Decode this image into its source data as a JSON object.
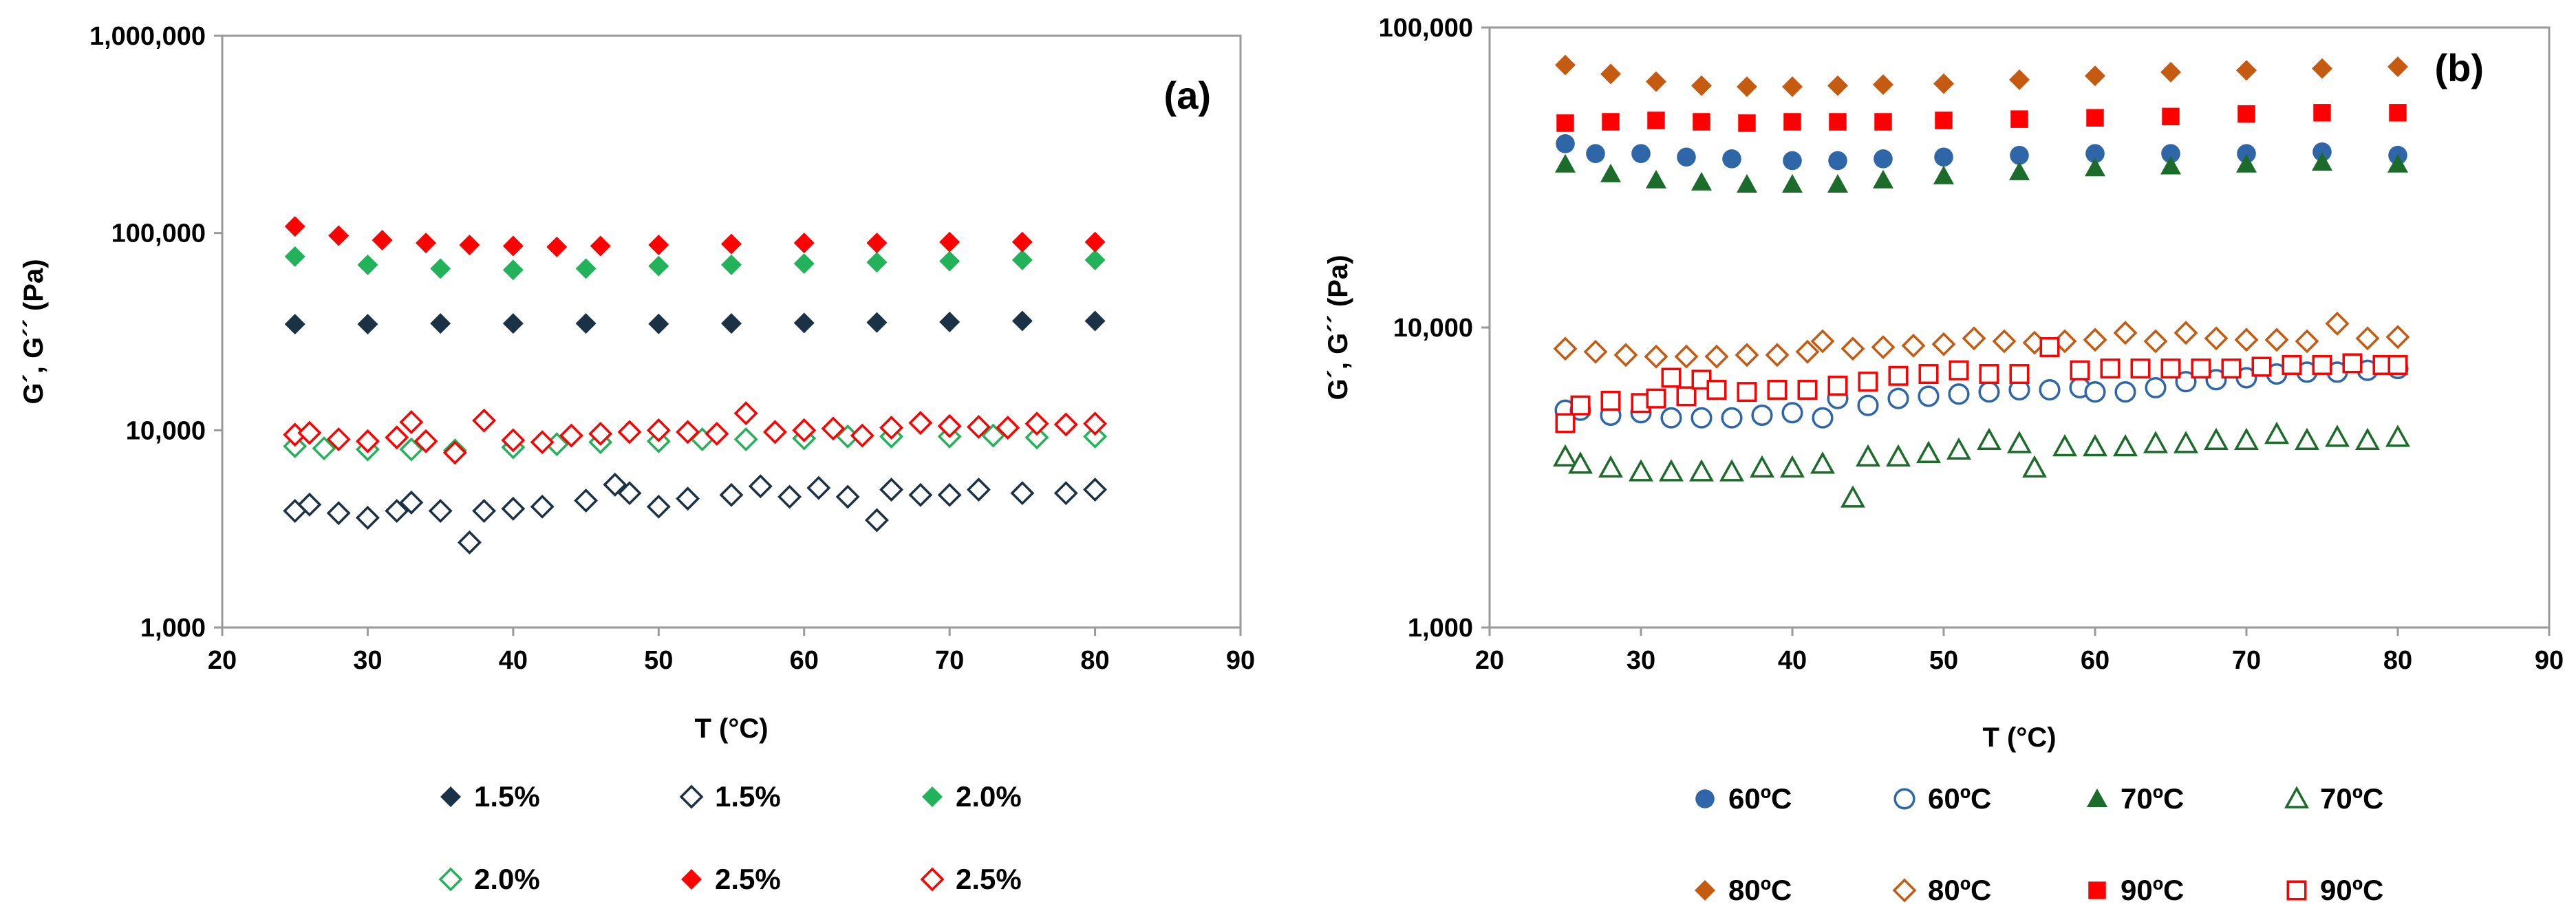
{
  "chart_data": [
    {
      "type": "scatter",
      "panel_label": "(a)",
      "xlabel": "T (°C)",
      "ylabel": "G´, G´´ (Pa)",
      "xlim": [
        20,
        90
      ],
      "ylim": [
        1000,
        1000000
      ],
      "yscale": "log",
      "x_ticks": [
        "20",
        "30",
        "40",
        "50",
        "60",
        "70",
        "80",
        "90"
      ],
      "y_ticks": [
        "1,000",
        "10,000",
        "100,000",
        "1,000,000"
      ],
      "grid": false,
      "legend_position": "bottom",
      "series": [
        {
          "name": "1.5%",
          "marker": "diamond",
          "filled": true,
          "color": "#1b3146",
          "x": [
            25,
            30,
            35,
            40,
            45,
            50,
            55,
            60,
            65,
            70,
            75,
            80
          ],
          "y": [
            34500,
            34500,
            34800,
            34800,
            34800,
            34600,
            34800,
            35000,
            35200,
            35400,
            35800,
            35800
          ]
        },
        {
          "name": "1.5%",
          "marker": "diamond",
          "filled": false,
          "color": "#1b3146",
          "x": [
            25,
            26,
            28,
            30,
            32,
            33,
            35,
            37,
            38,
            40,
            42,
            45,
            47,
            48,
            50,
            52,
            55,
            57,
            59,
            61,
            63,
            65,
            66,
            68,
            70,
            72,
            75,
            78,
            80
          ],
          "y": [
            3900,
            4200,
            3800,
            3600,
            3900,
            4300,
            3900,
            2700,
            3900,
            4000,
            4100,
            4400,
            5300,
            4800,
            4100,
            4500,
            4700,
            5200,
            4600,
            5100,
            4600,
            3500,
            5000,
            4700,
            4700,
            5000,
            4800,
            4800,
            5000
          ]
        },
        {
          "name": "2.0%",
          "marker": "diamond",
          "filled": true,
          "color": "#22b35a",
          "x": [
            25,
            30,
            35,
            40,
            45,
            50,
            55,
            60,
            65,
            70,
            75,
            80
          ],
          "y": [
            76000,
            69000,
            66000,
            65000,
            66000,
            68000,
            69000,
            70000,
            71000,
            72000,
            73000,
            73000
          ]
        },
        {
          "name": "2.0%",
          "marker": "diamond",
          "filled": false,
          "color": "#22b35a",
          "x": [
            25,
            27,
            30,
            33,
            36,
            40,
            43,
            46,
            50,
            53,
            56,
            60,
            63,
            66,
            70,
            73,
            76,
            80
          ],
          "y": [
            8300,
            8100,
            8000,
            8000,
            7900,
            8200,
            8500,
            8700,
            8800,
            9000,
            9000,
            9100,
            9300,
            9300,
            9300,
            9400,
            9200,
            9300
          ]
        },
        {
          "name": "2.5%",
          "marker": "diamond",
          "filled": true,
          "color": "#ff0000",
          "x": [
            25,
            28,
            31,
            34,
            37,
            40,
            43,
            46,
            50,
            55,
            60,
            65,
            70,
            75,
            80
          ],
          "y": [
            108000,
            97000,
            92000,
            89000,
            87000,
            86000,
            85000,
            86000,
            87000,
            88000,
            89000,
            89000,
            90000,
            90000,
            90000
          ]
        },
        {
          "name": "2.5%",
          "marker": "diamond",
          "filled": false,
          "color": "#ff0000",
          "x": [
            25,
            26,
            28,
            30,
            32,
            33,
            34,
            36,
            38,
            40,
            42,
            44,
            46,
            48,
            50,
            52,
            54,
            56,
            58,
            60,
            62,
            64,
            66,
            68,
            70,
            72,
            74,
            76,
            78,
            80
          ],
          "y": [
            9500,
            9700,
            9000,
            8800,
            9200,
            11000,
            8800,
            7700,
            11200,
            8900,
            8700,
            9400,
            9600,
            9800,
            10000,
            9800,
            9600,
            12200,
            9800,
            10000,
            10200,
            9400,
            10300,
            10900,
            10500,
            10400,
            10300,
            10800,
            10700,
            10800
          ]
        }
      ]
    },
    {
      "type": "scatter",
      "panel_label": "(b)",
      "xlabel": "T (°C)",
      "ylabel": "G´, G´´ (Pa)",
      "xlim": [
        20,
        90
      ],
      "ylim": [
        1000,
        100000
      ],
      "yscale": "log",
      "x_ticks": [
        "20",
        "30",
        "40",
        "50",
        "60",
        "70",
        "80",
        "90"
      ],
      "y_ticks": [
        "1,000",
        "10,000",
        "100,000"
      ],
      "grid": false,
      "legend_position": "bottom",
      "series": [
        {
          "name": "60ºC",
          "marker": "circle",
          "filled": true,
          "color": "#2e66a8",
          "x": [
            25,
            27,
            30,
            33,
            36,
            40,
            43,
            46,
            50,
            55,
            60,
            65,
            70,
            75,
            80
          ],
          "y": [
            41000,
            38000,
            38000,
            37000,
            36500,
            36000,
            36000,
            36500,
            37000,
            37500,
            38000,
            38000,
            38000,
            38500,
            37500
          ]
        },
        {
          "name": "60ºC",
          "marker": "circle",
          "filled": false,
          "color": "#2e66a8",
          "x": [
            25,
            26,
            28,
            30,
            32,
            34,
            36,
            38,
            40,
            42,
            43,
            45,
            47,
            49,
            51,
            53,
            55,
            57,
            59,
            60,
            62,
            64,
            66,
            68,
            70,
            72,
            74,
            76,
            78,
            80
          ],
          "y": [
            5300,
            5300,
            5100,
            5200,
            5000,
            5000,
            5000,
            5100,
            5200,
            5000,
            5800,
            5500,
            5800,
            5900,
            6000,
            6100,
            6200,
            6200,
            6300,
            6100,
            6100,
            6300,
            6600,
            6700,
            6800,
            7000,
            7100,
            7100,
            7200,
            7300
          ]
        },
        {
          "name": "70ºC",
          "marker": "triangle",
          "filled": true,
          "color": "#1b6b2a",
          "x": [
            25,
            28,
            31,
            34,
            37,
            40,
            43,
            46,
            50,
            55,
            60,
            65,
            70,
            75,
            80
          ],
          "y": [
            35000,
            32500,
            31000,
            30500,
            30000,
            30000,
            30000,
            31000,
            32000,
            33000,
            34000,
            34500,
            35000,
            35500,
            35000
          ]
        },
        {
          "name": "70ºC",
          "marker": "triangle",
          "filled": false,
          "color": "#1b6b2a",
          "x": [
            25,
            26,
            28,
            30,
            32,
            34,
            36,
            38,
            40,
            42,
            44,
            45,
            47,
            49,
            51,
            53,
            55,
            56,
            58,
            60,
            62,
            64,
            66,
            68,
            70,
            72,
            74,
            76,
            78,
            80
          ],
          "y": [
            3700,
            3500,
            3400,
            3300,
            3300,
            3300,
            3300,
            3400,
            3400,
            3500,
            2700,
            3700,
            3700,
            3800,
            3900,
            4200,
            4100,
            3400,
            4000,
            4000,
            4000,
            4100,
            4100,
            4200,
            4200,
            4400,
            4200,
            4300,
            4200,
            4300
          ]
        },
        {
          "name": "80ºC",
          "marker": "diamond",
          "filled": true,
          "color": "#c55a11",
          "x": [
            25,
            28,
            31,
            34,
            37,
            40,
            43,
            46,
            50,
            55,
            60,
            65,
            70,
            75,
            80
          ],
          "y": [
            75000,
            70000,
            66000,
            64000,
            63500,
            63500,
            64000,
            64500,
            65000,
            67000,
            69000,
            71000,
            72000,
            73000,
            74000
          ]
        },
        {
          "name": "80ºC",
          "marker": "diamond",
          "filled": false,
          "color": "#c55a11",
          "x": [
            25,
            27,
            29,
            31,
            33,
            35,
            37,
            39,
            41,
            42,
            44,
            46,
            48,
            50,
            52,
            54,
            56,
            58,
            60,
            62,
            64,
            66,
            68,
            70,
            72,
            74,
            76,
            78,
            80
          ],
          "y": [
            8500,
            8300,
            8100,
            8000,
            8000,
            8000,
            8100,
            8100,
            8300,
            9000,
            8500,
            8600,
            8700,
            8800,
            9200,
            9000,
            8900,
            9000,
            9100,
            9600,
            9000,
            9600,
            9200,
            9100,
            9100,
            9000,
            10300,
            9200,
            9300
          ]
        },
        {
          "name": "90ºC",
          "marker": "square",
          "filled": true,
          "color": "#ff0000",
          "x": [
            25,
            28,
            31,
            34,
            37,
            40,
            43,
            46,
            50,
            55,
            60,
            65,
            70,
            75,
            80
          ],
          "y": [
            48000,
            48500,
            49000,
            48500,
            48000,
            48500,
            48500,
            48500,
            49000,
            49500,
            50000,
            50500,
            51500,
            52000,
            52000
          ]
        },
        {
          "name": "90ºC",
          "marker": "square",
          "filled": false,
          "color": "#ff0000",
          "x": [
            25,
            26,
            28,
            30,
            31,
            32,
            33,
            34,
            35,
            37,
            39,
            41,
            43,
            45,
            47,
            49,
            51,
            53,
            55,
            57,
            59,
            61,
            63,
            65,
            67,
            69,
            71,
            73,
            75,
            77,
            79,
            80
          ],
          "y": [
            4800,
            5500,
            5700,
            5600,
            5800,
            6800,
            5900,
            6700,
            6200,
            6100,
            6200,
            6200,
            6400,
            6600,
            6900,
            7000,
            7200,
            7000,
            7000,
            8600,
            7200,
            7300,
            7300,
            7300,
            7300,
            7300,
            7400,
            7500,
            7500,
            7600,
            7500,
            7500
          ]
        }
      ]
    }
  ]
}
